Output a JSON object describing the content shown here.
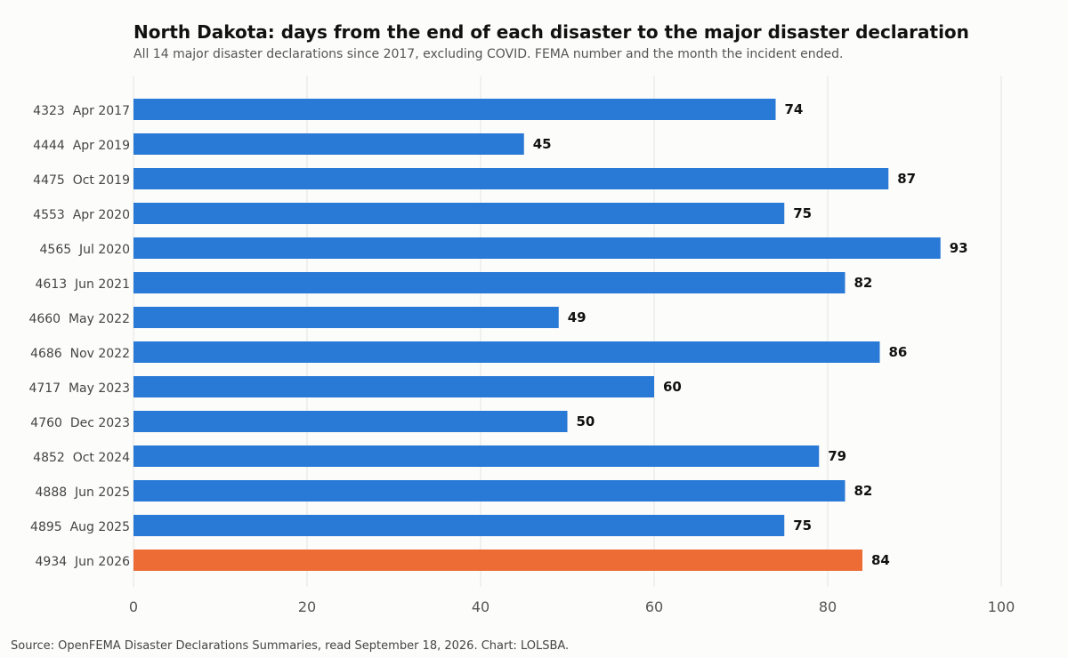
{
  "chart_data": {
    "type": "bar",
    "orientation": "horizontal",
    "title": "North Dakota: days from the end of each disaster to the major disaster declaration",
    "subtitle": "All 14 major disaster declarations since 2017, excluding COVID. FEMA number and the month the incident ended.",
    "categories": [
      "4323  Apr 2017",
      "4444  Apr 2019",
      "4475  Oct 2019",
      "4553  Apr 2020",
      "4565  Jul 2020",
      "4613  Jun 2021",
      "4660  May 2022",
      "4686  Nov 2022",
      "4717  May 2023",
      "4760  Dec 2023",
      "4852  Oct 2024",
      "4888  Jun 2025",
      "4895  Aug 2025",
      "4934  Jun 2026"
    ],
    "values": [
      74,
      45,
      87,
      75,
      93,
      82,
      49,
      86,
      60,
      50,
      79,
      82,
      75,
      84
    ],
    "highlight_index": 13,
    "colors": {
      "bar": "#2979d6",
      "highlight": "#ed6b35",
      "grid": "#e4e4e4"
    },
    "xlim": [
      0,
      100
    ],
    "xticks": [
      0,
      20,
      40,
      60,
      80,
      100
    ],
    "grid": true,
    "xlabel": "",
    "ylabel": ""
  },
  "source": "Source: OpenFEMA Disaster Declarations Summaries, read September 18, 2026. Chart: LOLSBA."
}
